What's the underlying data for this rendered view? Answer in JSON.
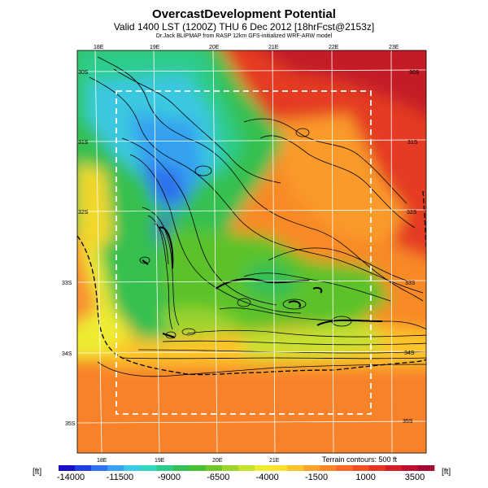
{
  "title": "OvercastDevelopment Potential",
  "subtitle": "Valid 1400 LST (1200Z) THU 6 Dec 2012 [18hrFcst@2153z]",
  "source_line": "Dr.Jack BLIPMAP from RASP 12km GFS-initialized WRF-ARW model",
  "terrain_note": "Terrain contours: 500 ft",
  "unit_label": "[ft]",
  "lon_ticks_top": [
    "18E",
    "19E",
    "20E",
    "21E",
    "22E",
    "23E"
  ],
  "lon_ticks_bottom": [
    "18E",
    "19E",
    "20E",
    "21E"
  ],
  "lat_ticks_left": [
    "30S",
    "31S",
    "32S",
    "33S",
    "34S",
    "35S"
  ],
  "lat_ticks_right": [
    "30S",
    "31S",
    "32S",
    "33S",
    "34S",
    "35S"
  ],
  "colorbar": {
    "labels": [
      "-14000",
      "-11500",
      "-9000",
      "-6500",
      "-4000",
      "-1500",
      "1000",
      "3500"
    ],
    "colors": [
      "#1a10c8",
      "#2040e0",
      "#2e72f0",
      "#3aa2f4",
      "#3ccae8",
      "#35d6c0",
      "#2ecc8c",
      "#36c054",
      "#48c030",
      "#6ec62c",
      "#9ed42e",
      "#c8e030",
      "#eeec30",
      "#fce02c",
      "#fcc22a",
      "#fca42a",
      "#fa8628",
      "#f86a26",
      "#f24e24",
      "#e63422",
      "#d41e26",
      "#bc1230",
      "#a20a36"
    ]
  }
}
